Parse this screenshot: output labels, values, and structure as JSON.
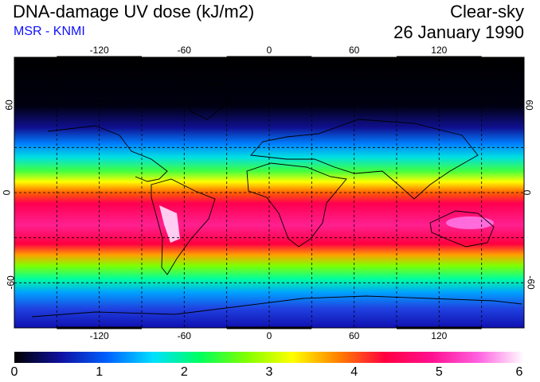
{
  "header": {
    "title": "DNA-damage UV dose (kJ/m2)",
    "subtitle": "MSR - KNMI",
    "sky_condition": "Clear-sky",
    "date": "26 January 1990"
  },
  "map": {
    "longitude_ticks": [
      "-120",
      "-60",
      "0",
      "60",
      "120"
    ],
    "latitude_ticks": [
      "60",
      "0",
      "-60"
    ]
  },
  "colorbar": {
    "labels": [
      "0",
      "1",
      "2",
      "3",
      "4",
      "5",
      "6"
    ],
    "stops": [
      "#000000",
      "#1010a0",
      "#0060ff",
      "#00e0ff",
      "#00ff60",
      "#80ff00",
      "#ffff00",
      "#ff8000",
      "#ff0040",
      "#ff1090",
      "#ff60e0",
      "#ffffff"
    ]
  }
}
